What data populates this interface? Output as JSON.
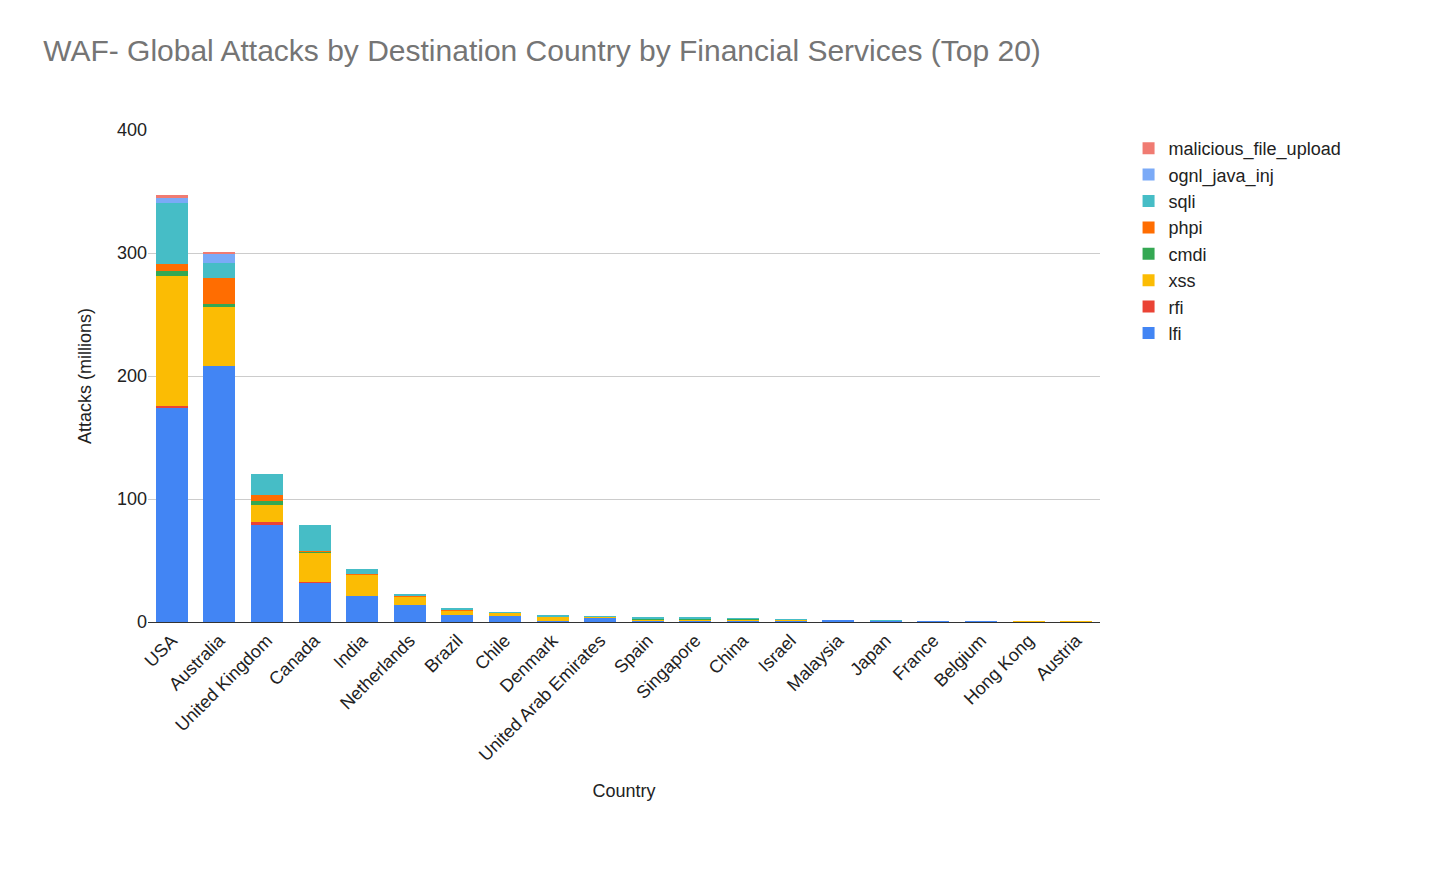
{
  "chart_data": {
    "type": "bar",
    "title": "WAF- Global Attacks by Destination Country by Financial Services (Top 20)",
    "x_label": "Country",
    "y_label": "Attacks (millions)",
    "categories": [
      "USA",
      "Australia",
      "United Kingdom",
      "Canada",
      "India",
      "Netherlands",
      "Brazil",
      "Chile",
      "Denmark",
      "United Arab Emirates",
      "Spain",
      "Singapore",
      "China",
      "Israel",
      "Malaysia",
      "Japan",
      "France",
      "Belgium",
      "Hong Kong",
      "Austria"
    ],
    "stacked": true,
    "grid": true,
    "legend": "right",
    "ylim": [
      0,
      400
    ],
    "yticks": [
      0,
      100,
      200,
      300,
      400
    ],
    "series": [
      {
        "name": "lfi",
        "color": "#4285f4",
        "values": [
          174,
          208,
          79,
          32,
          21,
          14,
          6,
          4.5,
          1,
          3,
          1,
          1,
          1,
          0.5,
          1.5,
          1.2,
          0.8,
          0.8,
          0.2,
          0.1
        ]
      },
      {
        "name": "rfi",
        "color": "#ea4335",
        "values": [
          2,
          0.5,
          2,
          0.5,
          0.3,
          0.2,
          0.1,
          0.1,
          0,
          0,
          0,
          0,
          0,
          0,
          0,
          0,
          0,
          0,
          0,
          0
        ]
      },
      {
        "name": "xss",
        "color": "#fbbc04",
        "values": [
          105,
          48,
          14,
          24,
          17,
          6,
          3,
          2.5,
          3,
          1,
          1,
          1,
          0.8,
          1.2,
          0,
          0,
          0,
          0,
          0.8,
          0.8
        ]
      },
      {
        "name": "cmdi",
        "color": "#34a853",
        "values": [
          4,
          2,
          3,
          0.3,
          0.3,
          0.3,
          0.2,
          0.1,
          0.2,
          0.2,
          0.3,
          0.3,
          0.3,
          0.1,
          0,
          0,
          0,
          0,
          0,
          0
        ]
      },
      {
        "name": "phpi",
        "color": "#ff6d01",
        "values": [
          6,
          21,
          5,
          1,
          0.5,
          0.5,
          0.2,
          0.2,
          0.1,
          0.1,
          0,
          0,
          0,
          0,
          0,
          0,
          0,
          0,
          0,
          0
        ]
      },
      {
        "name": "sqli",
        "color": "#46bdc6",
        "values": [
          50,
          12,
          17,
          21,
          4,
          1.5,
          1.5,
          0.5,
          1,
          0.5,
          1.5,
          1.5,
          1.5,
          0.3,
          0.5,
          0.5,
          0.2,
          0.2,
          0,
          0
        ]
      },
      {
        "name": "ognl_java_inj",
        "color": "#7baaf7",
        "values": [
          4,
          8,
          0.5,
          0.2,
          0.3,
          0.3,
          0.1,
          0.1,
          0,
          0,
          0,
          0,
          0,
          0,
          0,
          0,
          0,
          0,
          0,
          0
        ]
      },
      {
        "name": "malicious_file_upload",
        "color": "#f07b72",
        "values": [
          2,
          1,
          0.2,
          0.1,
          0,
          0,
          0,
          0,
          0,
          0,
          0,
          0,
          0,
          0,
          0,
          0,
          0,
          0,
          0,
          0
        ]
      }
    ]
  }
}
